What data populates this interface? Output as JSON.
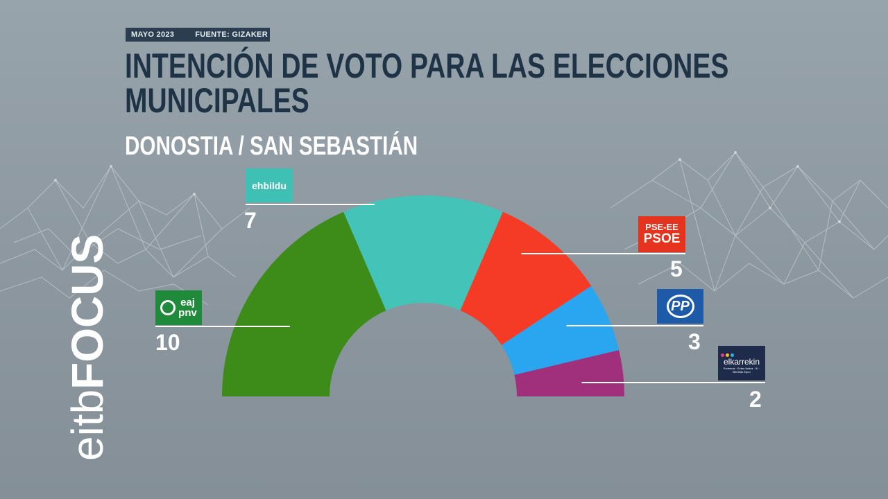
{
  "header": {
    "date": "MAYO 2023",
    "source": "FUENTE: GIZAKER",
    "title": "INTENCIÓN DE VOTO PARA LAS ELECCIONES\nMUNICIPALES",
    "subtitle": "DONOSTIA / SAN SEBASTIÁN"
  },
  "brand": {
    "light": "eitb",
    "bold": "FOCUS"
  },
  "logos": {
    "ehbildu": "ehbildu",
    "psoe_top": "PSE-EE",
    "psoe_bottom": "PSOE",
    "pp": "PP",
    "eaj_top": "eaj",
    "eaj_bottom": "pnv",
    "elkarrekin": "elkarrekin",
    "elkarrekin_sub": "Podemos · Ezker Anitza · IU · Berdeak Equo"
  },
  "chart_data": {
    "type": "parliament",
    "total_seats": 27,
    "series": [
      {
        "name": "EAJ-PNV",
        "value": 10,
        "color": "#3d8c1a"
      },
      {
        "name": "EH Bildu",
        "value": 7,
        "color": "#44c4b8"
      },
      {
        "name": "PSE-EE (PSOE)",
        "value": 5,
        "color": "#f53b26"
      },
      {
        "name": "PP",
        "value": 3,
        "color": "#29a6ef"
      },
      {
        "name": "Elkarrekin Podemos",
        "value": 2,
        "color": "#a0307c"
      }
    ]
  }
}
